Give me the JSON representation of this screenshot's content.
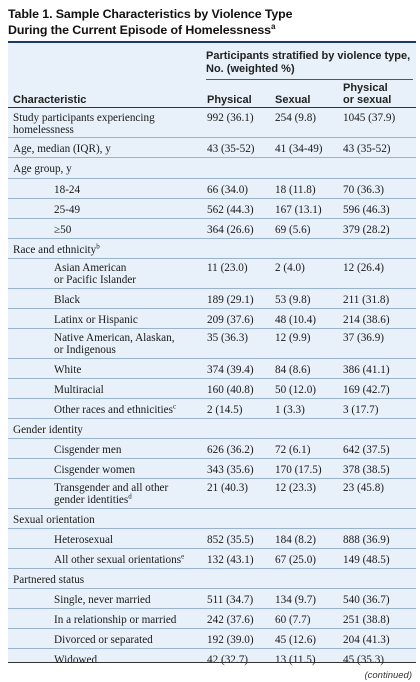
{
  "title": {
    "line1": "Table 1. Sample Characteristics by Violence Type",
    "line2": "During the Current Episode of Homelessness",
    "note_mark": "a"
  },
  "header": {
    "group_line1": "Participants stratified by violence type,",
    "group_line2": "No. (weighted %)",
    "characteristic": "Characteristic",
    "physical": "Physical",
    "sexual": "Sexual",
    "phys_or_sex_line1": "Physical",
    "phys_or_sex_line2": "or sexual"
  },
  "rows": [
    {
      "label": "Study participants experiencing homelessness",
      "physical": "992 (36.1)",
      "sexual": "254 (9.8)",
      "either": "1045 (37.9)"
    },
    {
      "label": "Age, median (IQR), y",
      "physical": "43 (35-52)",
      "sexual": "41 (34-49)",
      "either": "43 (35-52)"
    },
    {
      "label": "Age group, y",
      "physical": "",
      "sexual": "",
      "either": ""
    },
    {
      "label": "18-24",
      "physical": "66 (34.0)",
      "sexual": "18 (11.8)",
      "either": "70 (36.3)"
    },
    {
      "label": "25-49",
      "physical": "562 (44.3)",
      "sexual": "167 (13.1)",
      "either": "596 (46.3)"
    },
    {
      "label": "≥50",
      "physical": "364 (26.6)",
      "sexual": "69 (5.6)",
      "either": "379 (28.2)"
    },
    {
      "label": "Race and ethnicity",
      "sup": "b",
      "physical": "",
      "sexual": "",
      "either": ""
    },
    {
      "label": "Asian American or Pacific Islander",
      "physical": "11 (23.0)",
      "sexual": "2 (4.0)",
      "either": "12 (26.4)"
    },
    {
      "label": "Black",
      "physical": "189 (29.1)",
      "sexual": "53 (9.8)",
      "either": "211 (31.8)"
    },
    {
      "label": "Latinx or Hispanic",
      "physical": "209 (37.6)",
      "sexual": "48 (10.4)",
      "either": "214 (38.6)"
    },
    {
      "label": "Native American, Alaskan, or Indigenous",
      "physical": "35 (36.3)",
      "sexual": "12 (9.9)",
      "either": "37 (36.9)"
    },
    {
      "label": "White",
      "physical": "374 (39.4)",
      "sexual": "84 (8.6)",
      "either": "386 (41.1)"
    },
    {
      "label": "Multiracial",
      "physical": "160 (40.8)",
      "sexual": "50 (12.0)",
      "either": "169 (42.7)"
    },
    {
      "label": "Other races and ethnicities",
      "sup": "c",
      "physical": "2 (14.5)",
      "sexual": "1 (3.3)",
      "either": "3 (17.7)"
    },
    {
      "label": "Gender identity",
      "physical": "",
      "sexual": "",
      "either": ""
    },
    {
      "label": "Cisgender men",
      "physical": "626 (36.2)",
      "sexual": "72 (6.1)",
      "either": "642 (37.5)"
    },
    {
      "label": "Cisgender women",
      "physical": "343 (35.6)",
      "sexual": "170 (17.5)",
      "either": "378 (38.5)"
    },
    {
      "label": "Transgender and all other gender identities",
      "sup": "d",
      "physical": "21 (40.3)",
      "sexual": "12 (23.3)",
      "either": "23 (45.8)"
    },
    {
      "label": "Sexual orientation",
      "physical": "",
      "sexual": "",
      "either": ""
    },
    {
      "label": "Heterosexual",
      "physical": "852 (35.5)",
      "sexual": "184 (8.2)",
      "either": "888 (36.9)"
    },
    {
      "label": "All other sexual orientations",
      "sup": "e",
      "physical": "132 (43.1)",
      "sexual": "67 (25.0)",
      "either": "149 (48.5)"
    },
    {
      "label": "Partnered status",
      "physical": "",
      "sexual": "",
      "either": ""
    },
    {
      "label": "Single, never married",
      "physical": "511 (34.7)",
      "sexual": "134 (9.7)",
      "either": "540 (36.7)"
    },
    {
      "label": "In a relationship or married",
      "physical": "242 (37.6)",
      "sexual": "60 (7.7)",
      "either": "251 (38.8)"
    },
    {
      "label": "Divorced or separated",
      "physical": "192 (39.0)",
      "sexual": "45 (12.6)",
      "either": "204 (41.3)"
    },
    {
      "label": "Widowed",
      "physical": "42 (32.7)",
      "sexual": "13 (11.5)",
      "either": "45 (35.3)"
    }
  ],
  "continued": "(continued)"
}
